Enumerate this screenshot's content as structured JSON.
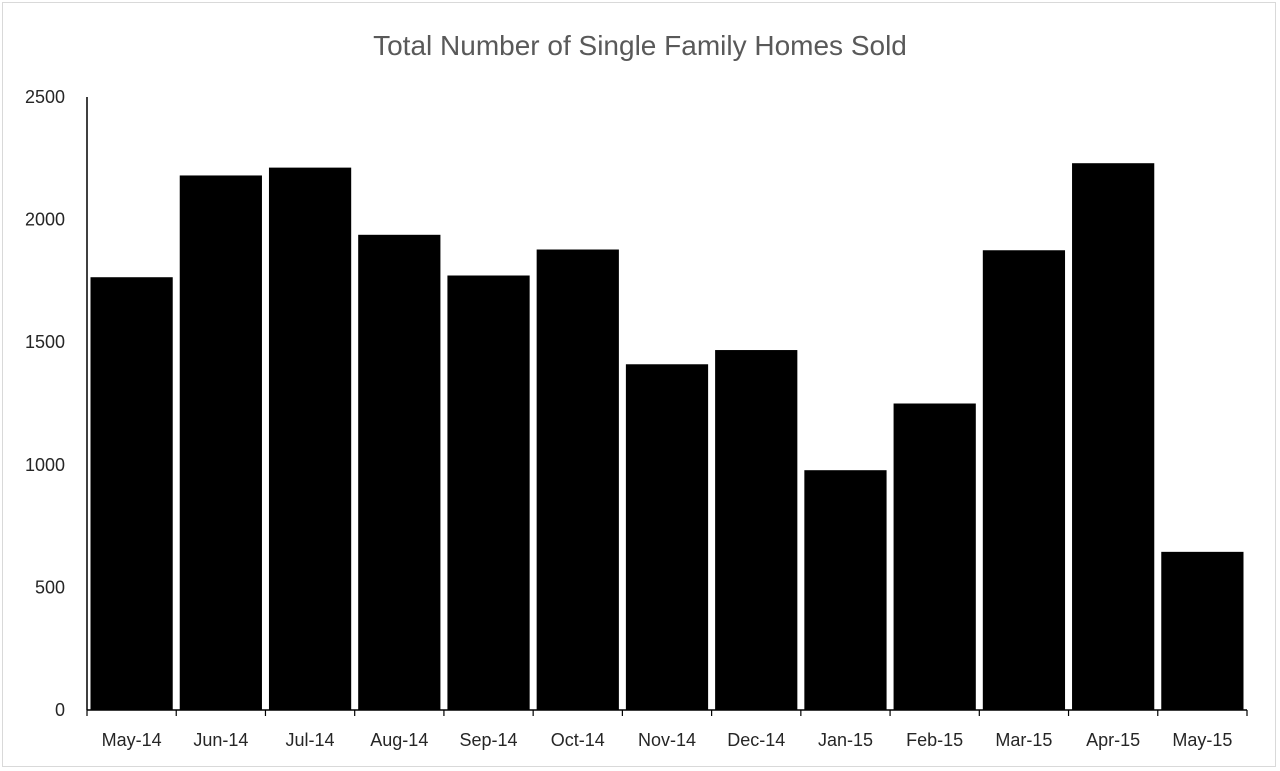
{
  "chart_data": {
    "type": "bar",
    "title": "Total Number of Single Family Homes Sold",
    "xlabel": "",
    "ylabel": "",
    "categories": [
      "May-14",
      "Jun-14",
      "Jul-14",
      "Aug-14",
      "Sep-14",
      "Oct-14",
      "Nov-14",
      "Dec-14",
      "Jan-15",
      "Feb-15",
      "Mar-15",
      "Apr-15",
      "May-15"
    ],
    "values": [
      1765,
      2180,
      2212,
      1938,
      1772,
      1878,
      1410,
      1468,
      978,
      1250,
      1875,
      2230,
      645
    ],
    "ylim": [
      0,
      2500
    ],
    "yticks": [
      "0",
      "500",
      "1000",
      "1500",
      "2000",
      "2500"
    ],
    "grid": false,
    "legend": "none",
    "bar_color": "#000000"
  }
}
